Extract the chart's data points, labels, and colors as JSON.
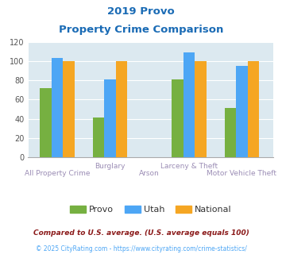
{
  "title_line1": "2019 Provo",
  "title_line2": "Property Crime Comparison",
  "title_color": "#1a6bb5",
  "groups": [
    "All Property Crime",
    "Burglary",
    "Larceny & Theft",
    "Motor Vehicle Theft"
  ],
  "provo": [
    72,
    41,
    81,
    51
  ],
  "utah": [
    103,
    81,
    109,
    95
  ],
  "national": [
    100,
    100,
    100,
    100
  ],
  "color_provo": "#76b041",
  "color_utah": "#4da6f5",
  "color_national": "#f5a623",
  "ylim": [
    0,
    120
  ],
  "yticks": [
    0,
    20,
    40,
    60,
    80,
    100,
    120
  ],
  "plot_bg": "#dce9f0",
  "xlabel_color": "#9b8db5",
  "footnote1": "Compared to U.S. average. (U.S. average equals 100)",
  "footnote2": "© 2025 CityRating.com - https://www.cityrating.com/crime-statistics/",
  "footnote1_color": "#8b1a1a",
  "footnote2_color": "#4da6f5",
  "legend_labels": [
    "Provo",
    "Utah",
    "National"
  ],
  "bar_width": 0.22
}
